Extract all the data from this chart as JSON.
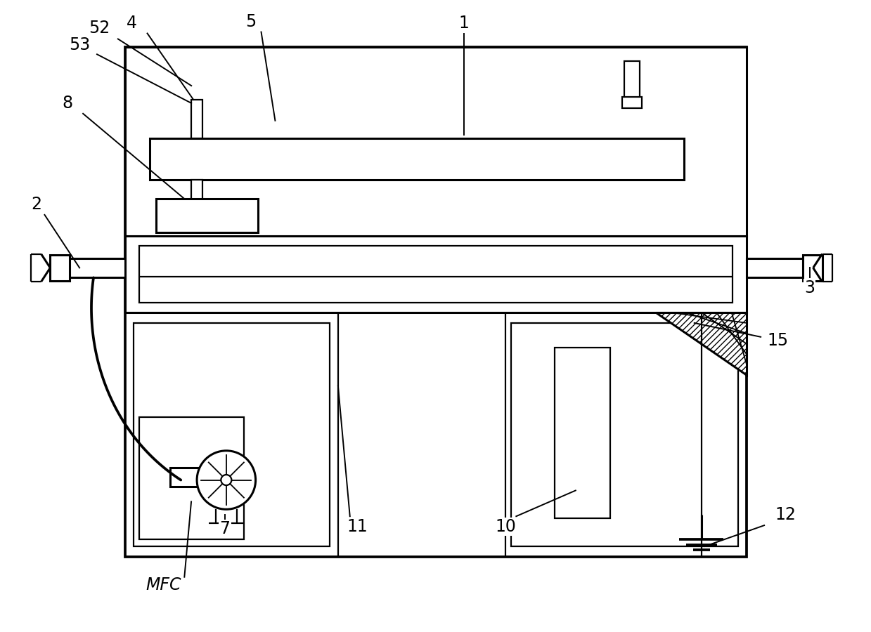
{
  "bg_color": "#ffffff",
  "lc": "#000000",
  "lw": 2.2,
  "tlw": 1.6,
  "fig_width": 12.39,
  "fig_height": 9.0,
  "label_fontsize": 17
}
